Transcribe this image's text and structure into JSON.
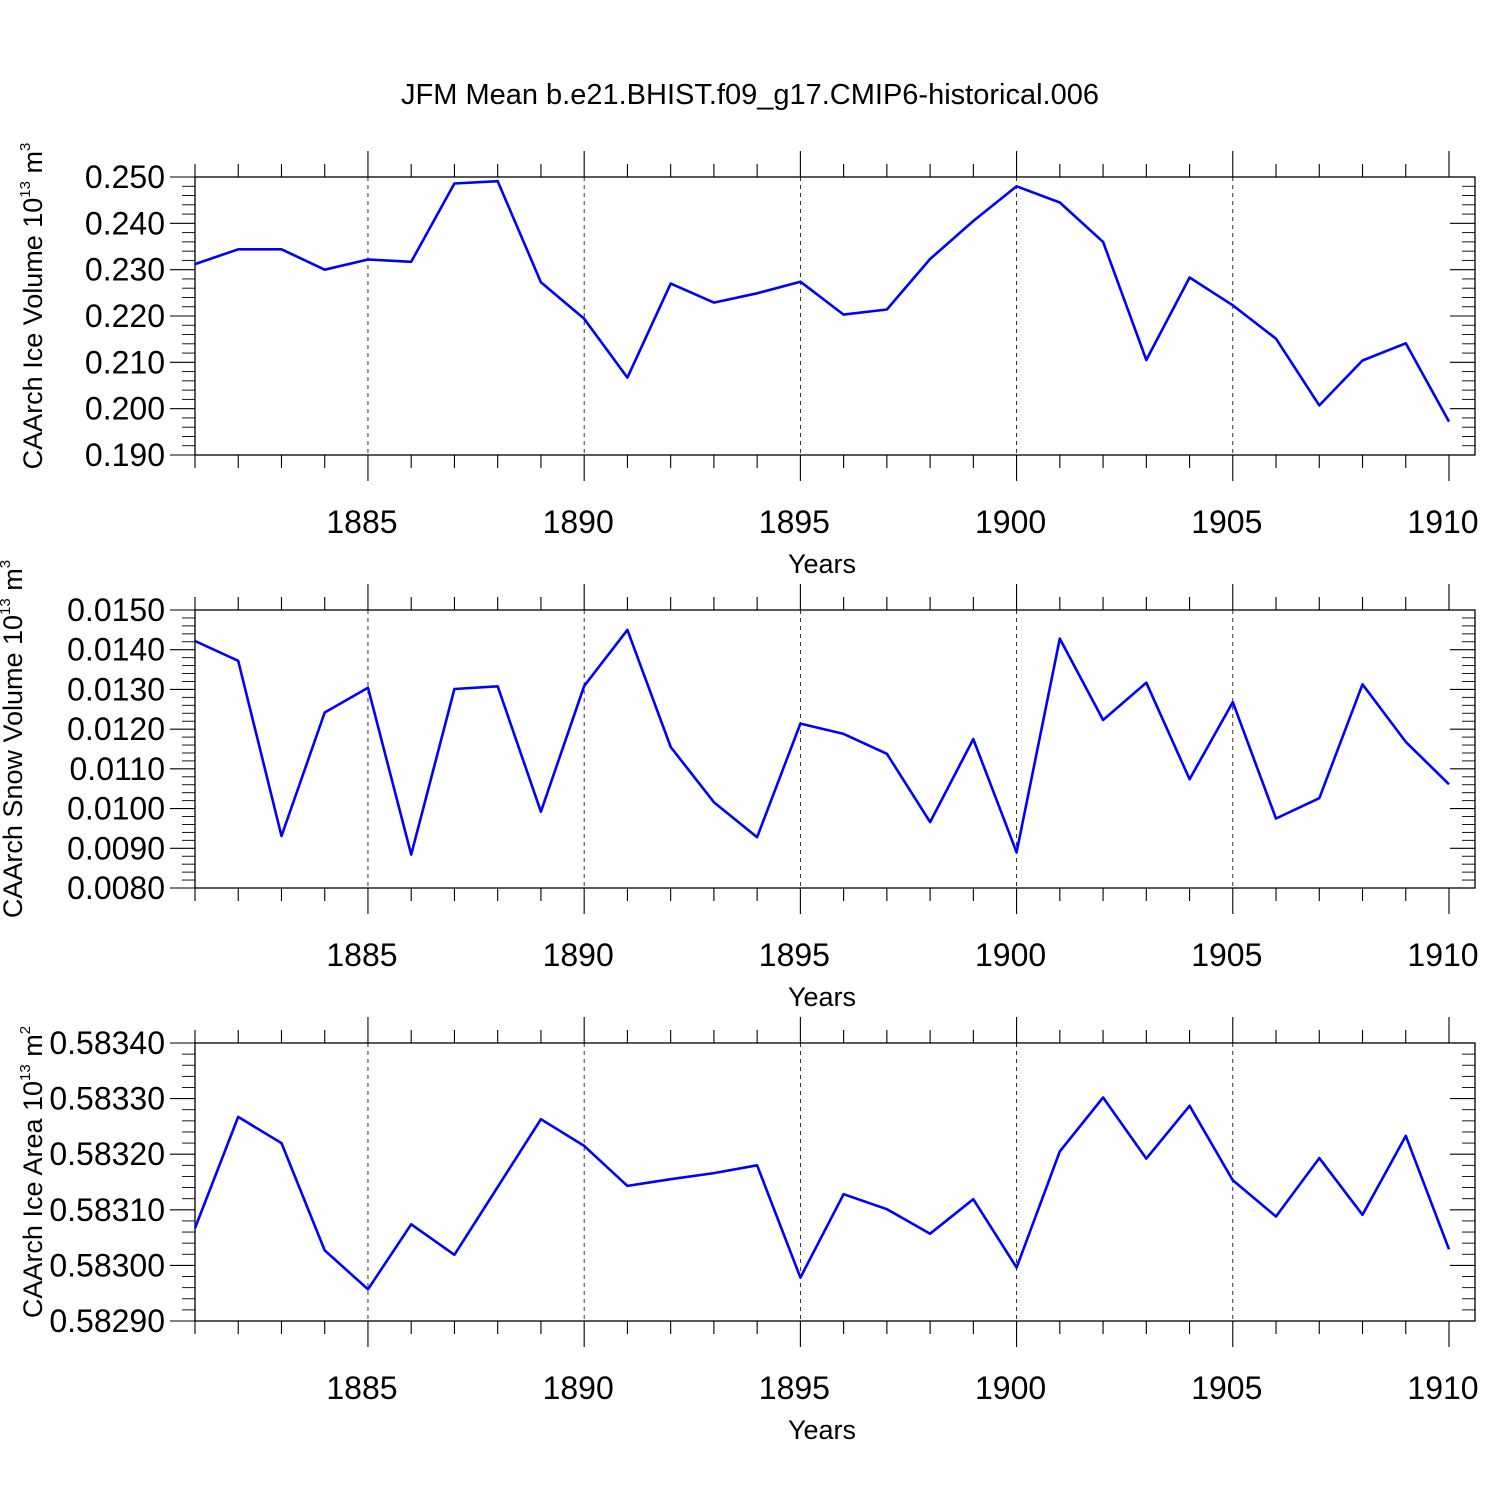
{
  "title": "JFM Mean b.e21.BHIST.f09_g17.CMIP6-historical.006",
  "colors": {
    "line": "#0000ff",
    "axis": "#000000",
    "grid": "#000000"
  },
  "chart_data": [
    {
      "type": "line",
      "xlabel": "Years",
      "ylabel_main": "CAArch Ice Volume 10",
      "ylabel_exp": "13",
      "ylabel_unit": "m",
      "ylabel_unit_exp": "3",
      "xlim": [
        1881,
        1910
      ],
      "ylim": [
        0.19,
        0.25
      ],
      "xticks": [
        1885,
        1890,
        1895,
        1900,
        1905,
        1910
      ],
      "yticks": [
        "0.190",
        "0.200",
        "0.210",
        "0.220",
        "0.230",
        "0.240",
        "0.250"
      ],
      "grid": "vertical dashed at major x ticks",
      "series": [
        {
          "x": [
            1881,
            1882,
            1883,
            1884,
            1885,
            1886,
            1887,
            1888,
            1889,
            1890,
            1891,
            1892,
            1893,
            1894,
            1895,
            1896,
            1897,
            1898,
            1899,
            1900,
            1901,
            1902,
            1903,
            1904,
            1905,
            1906,
            1907,
            1908,
            1909,
            1910
          ],
          "values": [
            0.2312,
            0.2344,
            0.2344,
            0.23,
            0.2322,
            0.2317,
            0.2486,
            0.2491,
            0.2273,
            0.2194,
            0.2067,
            0.227,
            0.2229,
            0.2249,
            0.2274,
            0.2203,
            0.2214,
            0.2323,
            0.2405,
            0.248,
            0.2445,
            0.236,
            0.2105,
            0.2283,
            0.2223,
            0.2151,
            0.2007,
            0.2104,
            0.2141,
            0.1972
          ]
        }
      ]
    },
    {
      "type": "line",
      "xlabel": "Years",
      "ylabel_main": "CAArch Snow Volume 10",
      "ylabel_exp": "13",
      "ylabel_unit": "m",
      "ylabel_unit_exp": "3",
      "xlim": [
        1881,
        1910
      ],
      "ylim": [
        0.008,
        0.015
      ],
      "xticks": [
        1885,
        1890,
        1895,
        1900,
        1905,
        1910
      ],
      "yticks": [
        "0.0080",
        "0.0090",
        "0.0100",
        "0.0110",
        "0.0120",
        "0.0130",
        "0.0140",
        "0.0150"
      ],
      "grid": "vertical dashed at major x ticks",
      "series": [
        {
          "x": [
            1881,
            1882,
            1883,
            1884,
            1885,
            1886,
            1887,
            1888,
            1889,
            1890,
            1891,
            1892,
            1893,
            1894,
            1895,
            1896,
            1897,
            1898,
            1899,
            1900,
            1901,
            1902,
            1903,
            1904,
            1905,
            1906,
            1907,
            1908,
            1909,
            1910
          ],
          "values": [
            0.01422,
            0.01372,
            0.00931,
            0.01242,
            0.01304,
            0.00884,
            0.01301,
            0.01308,
            0.00992,
            0.01309,
            0.0145,
            0.01155,
            0.01016,
            0.00928,
            0.01214,
            0.01188,
            0.01138,
            0.00966,
            0.01175,
            0.0089,
            0.01428,
            0.01223,
            0.01317,
            0.01074,
            0.01268,
            0.00975,
            0.01026,
            0.01313,
            0.01168,
            0.01061
          ]
        }
      ]
    },
    {
      "type": "line",
      "xlabel": "Years",
      "ylabel_main": "CAArch Ice Area 10",
      "ylabel_exp": "13",
      "ylabel_unit": "m",
      "ylabel_unit_exp": "2",
      "xlim": [
        1881,
        1910
      ],
      "ylim": [
        0.5829,
        0.5834
      ],
      "xticks": [
        1885,
        1890,
        1895,
        1900,
        1905,
        1910
      ],
      "yticks": [
        "0.58290",
        "0.58300",
        "0.58310",
        "0.58320",
        "0.58330",
        "0.58340"
      ],
      "grid": "vertical dashed at major x ticks",
      "series": [
        {
          "x": [
            1881,
            1882,
            1883,
            1884,
            1885,
            1886,
            1887,
            1888,
            1889,
            1890,
            1891,
            1892,
            1893,
            1894,
            1895,
            1896,
            1897,
            1898,
            1899,
            1900,
            1901,
            1902,
            1903,
            1904,
            1905,
            1906,
            1907,
            1908,
            1909,
            1910
          ],
          "values": [
            0.583067,
            0.583267,
            0.58322,
            0.583027,
            0.582957,
            0.583074,
            0.583019,
            0.583141,
            0.583263,
            0.583215,
            0.583143,
            0.583155,
            0.583166,
            0.58318,
            0.582978,
            0.583128,
            0.583101,
            0.583057,
            0.583119,
            0.582996,
            0.583205,
            0.583302,
            0.583192,
            0.583287,
            0.583153,
            0.583088,
            0.583193,
            0.583091,
            0.583233,
            0.583029
          ]
        }
      ]
    }
  ]
}
